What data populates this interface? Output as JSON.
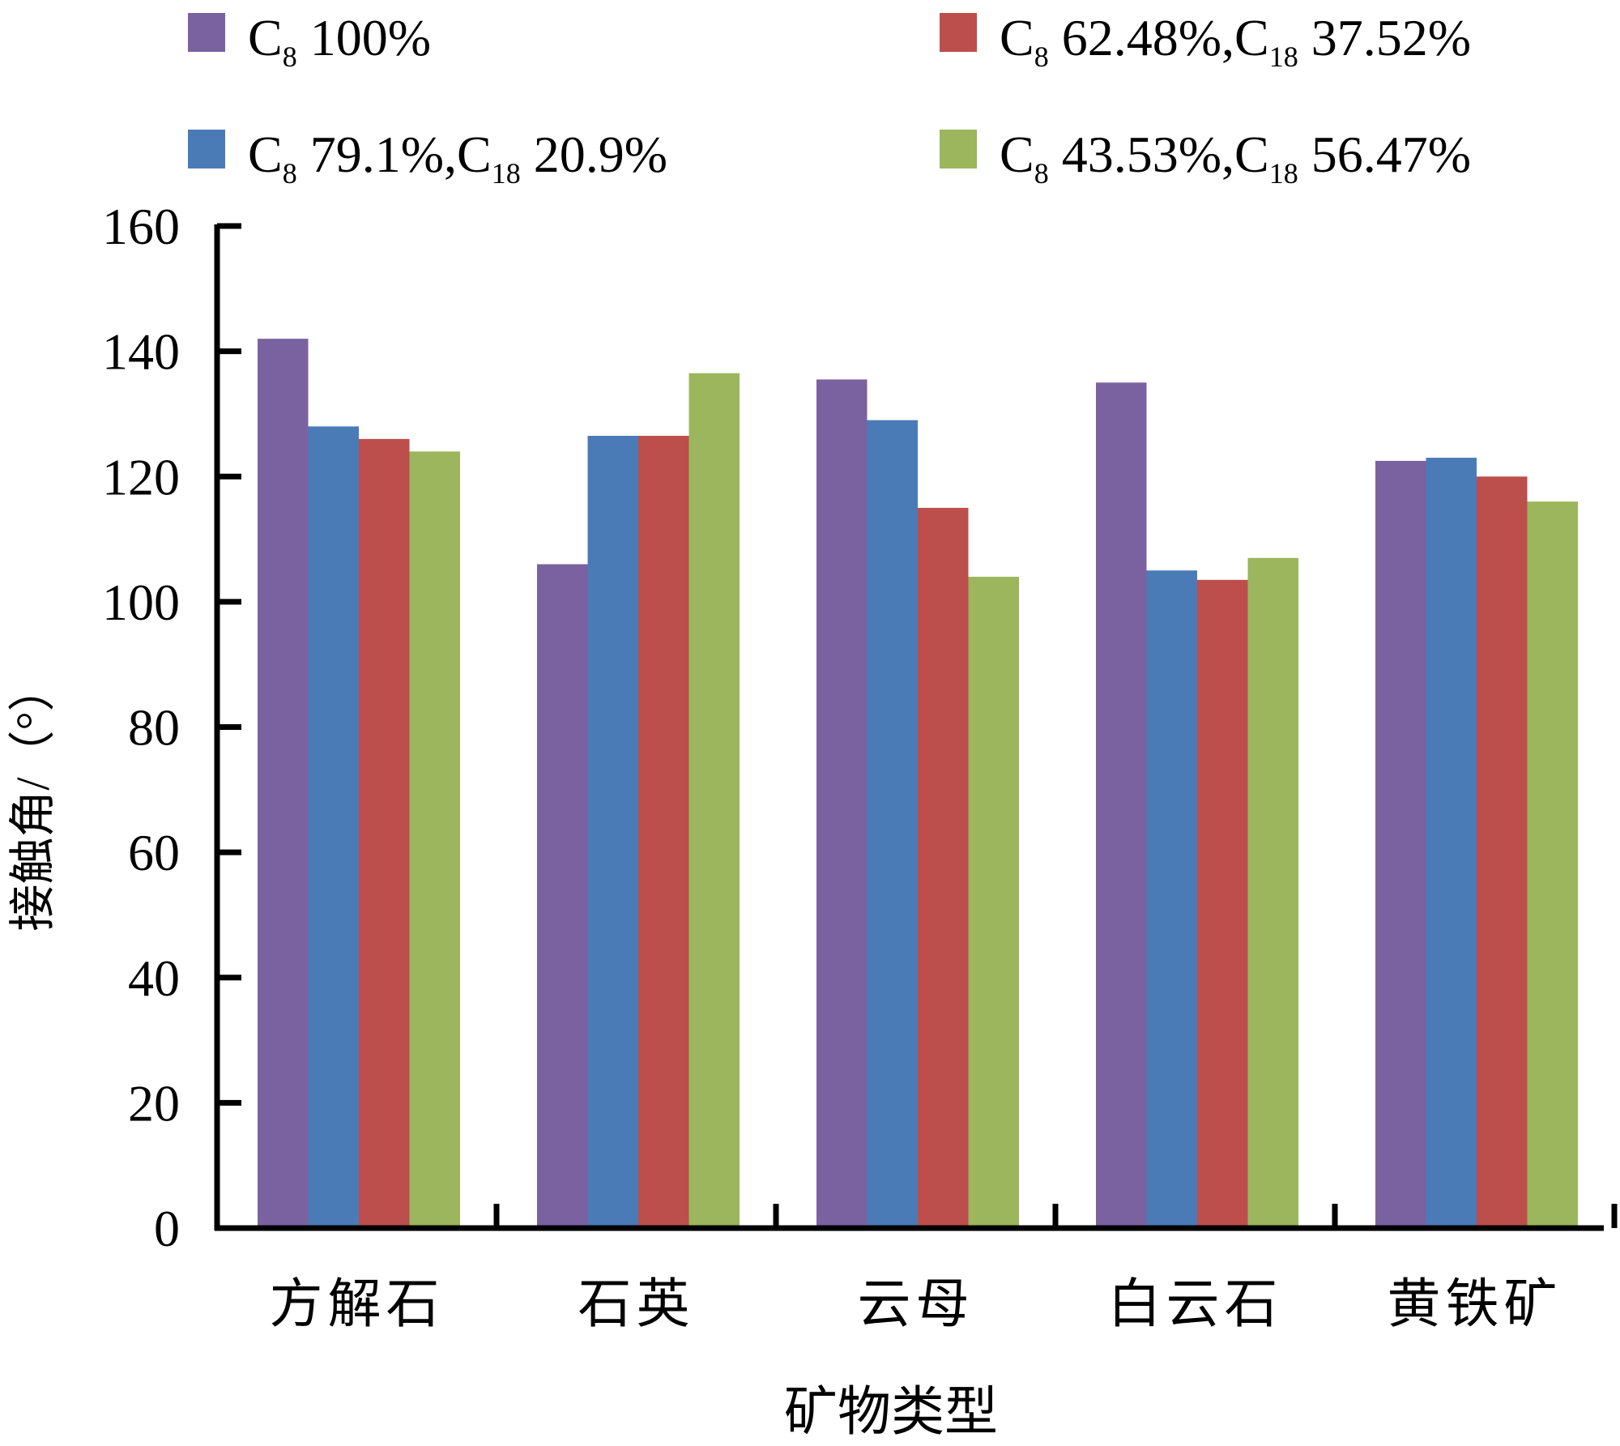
{
  "chart_data": {
    "type": "bar",
    "categories": [
      "方解石",
      "石英",
      "云母",
      "白云石",
      "黄铁矿"
    ],
    "xlabel": "矿物类型",
    "ylabel": "接触角/（°）",
    "ylim": [
      0,
      160
    ],
    "yticks": [
      0,
      20,
      40,
      60,
      80,
      100,
      120,
      140,
      160
    ],
    "grid": false,
    "legend_position": "top",
    "series": [
      {
        "name": "C8 100%",
        "label_parts": [
          {
            "t": "C"
          },
          {
            "t": "8",
            "sub": true
          },
          {
            "t": " 100%"
          }
        ],
        "color": "#7a62a0",
        "values": [
          142,
          106,
          135.5,
          135,
          122.5
        ]
      },
      {
        "name": "C8 79.1%,C18 20.9%",
        "label_parts": [
          {
            "t": "C"
          },
          {
            "t": "8",
            "sub": true
          },
          {
            "t": " 79.1%,C"
          },
          {
            "t": "18",
            "sub": true
          },
          {
            "t": " 20.9%"
          }
        ],
        "color": "#4a7bb7",
        "values": [
          128,
          126.5,
          129,
          105,
          123
        ]
      },
      {
        "name": "C8 62.48%,C18 37.52%",
        "label_parts": [
          {
            "t": "C"
          },
          {
            "t": "8",
            "sub": true
          },
          {
            "t": " 62.48%,C"
          },
          {
            "t": "18",
            "sub": true
          },
          {
            "t": " 37.52%"
          }
        ],
        "color": "#bc4e4c",
        "values": [
          126,
          126.5,
          115,
          103.5,
          120
        ]
      },
      {
        "name": "C8 43.53%,C18 56.47%",
        "label_parts": [
          {
            "t": "C"
          },
          {
            "t": "8",
            "sub": true
          },
          {
            "t": " 43.53%,C"
          },
          {
            "t": "18",
            "sub": true
          },
          {
            "t": " 56.47%"
          }
        ],
        "color": "#9bb65c",
        "values": [
          124,
          136.5,
          104,
          107,
          116
        ]
      }
    ]
  }
}
